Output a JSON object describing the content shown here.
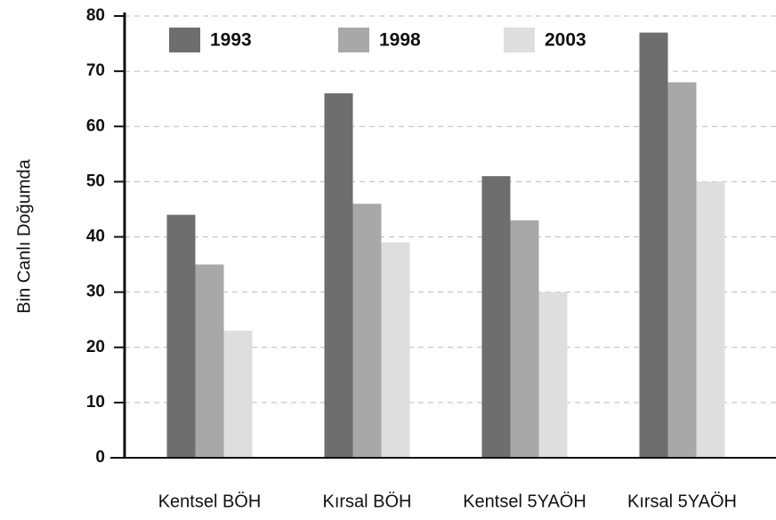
{
  "chart_data": {
    "type": "bar",
    "y_label": "Bin Canlı Doğumda",
    "categories": [
      "Kentsel BÖH",
      "Kırsal BÖH",
      "Kentsel 5YAÖH",
      "Kırsal 5YAÖH"
    ],
    "series": [
      {
        "name": "1993",
        "color": "#6e6e6e",
        "values": [
          44,
          66,
          51,
          77
        ]
      },
      {
        "name": "1998",
        "color": "#a8a8a8",
        "values": [
          35,
          46,
          43,
          68
        ]
      },
      {
        "name": "2003",
        "color": "#dedede",
        "values": [
          23,
          39,
          30,
          50
        ]
      }
    ],
    "ylim": [
      0,
      80
    ],
    "yticks": [
      0,
      10,
      20,
      30,
      40,
      50,
      60,
      70,
      80
    ],
    "grid": true,
    "legend": "top"
  }
}
